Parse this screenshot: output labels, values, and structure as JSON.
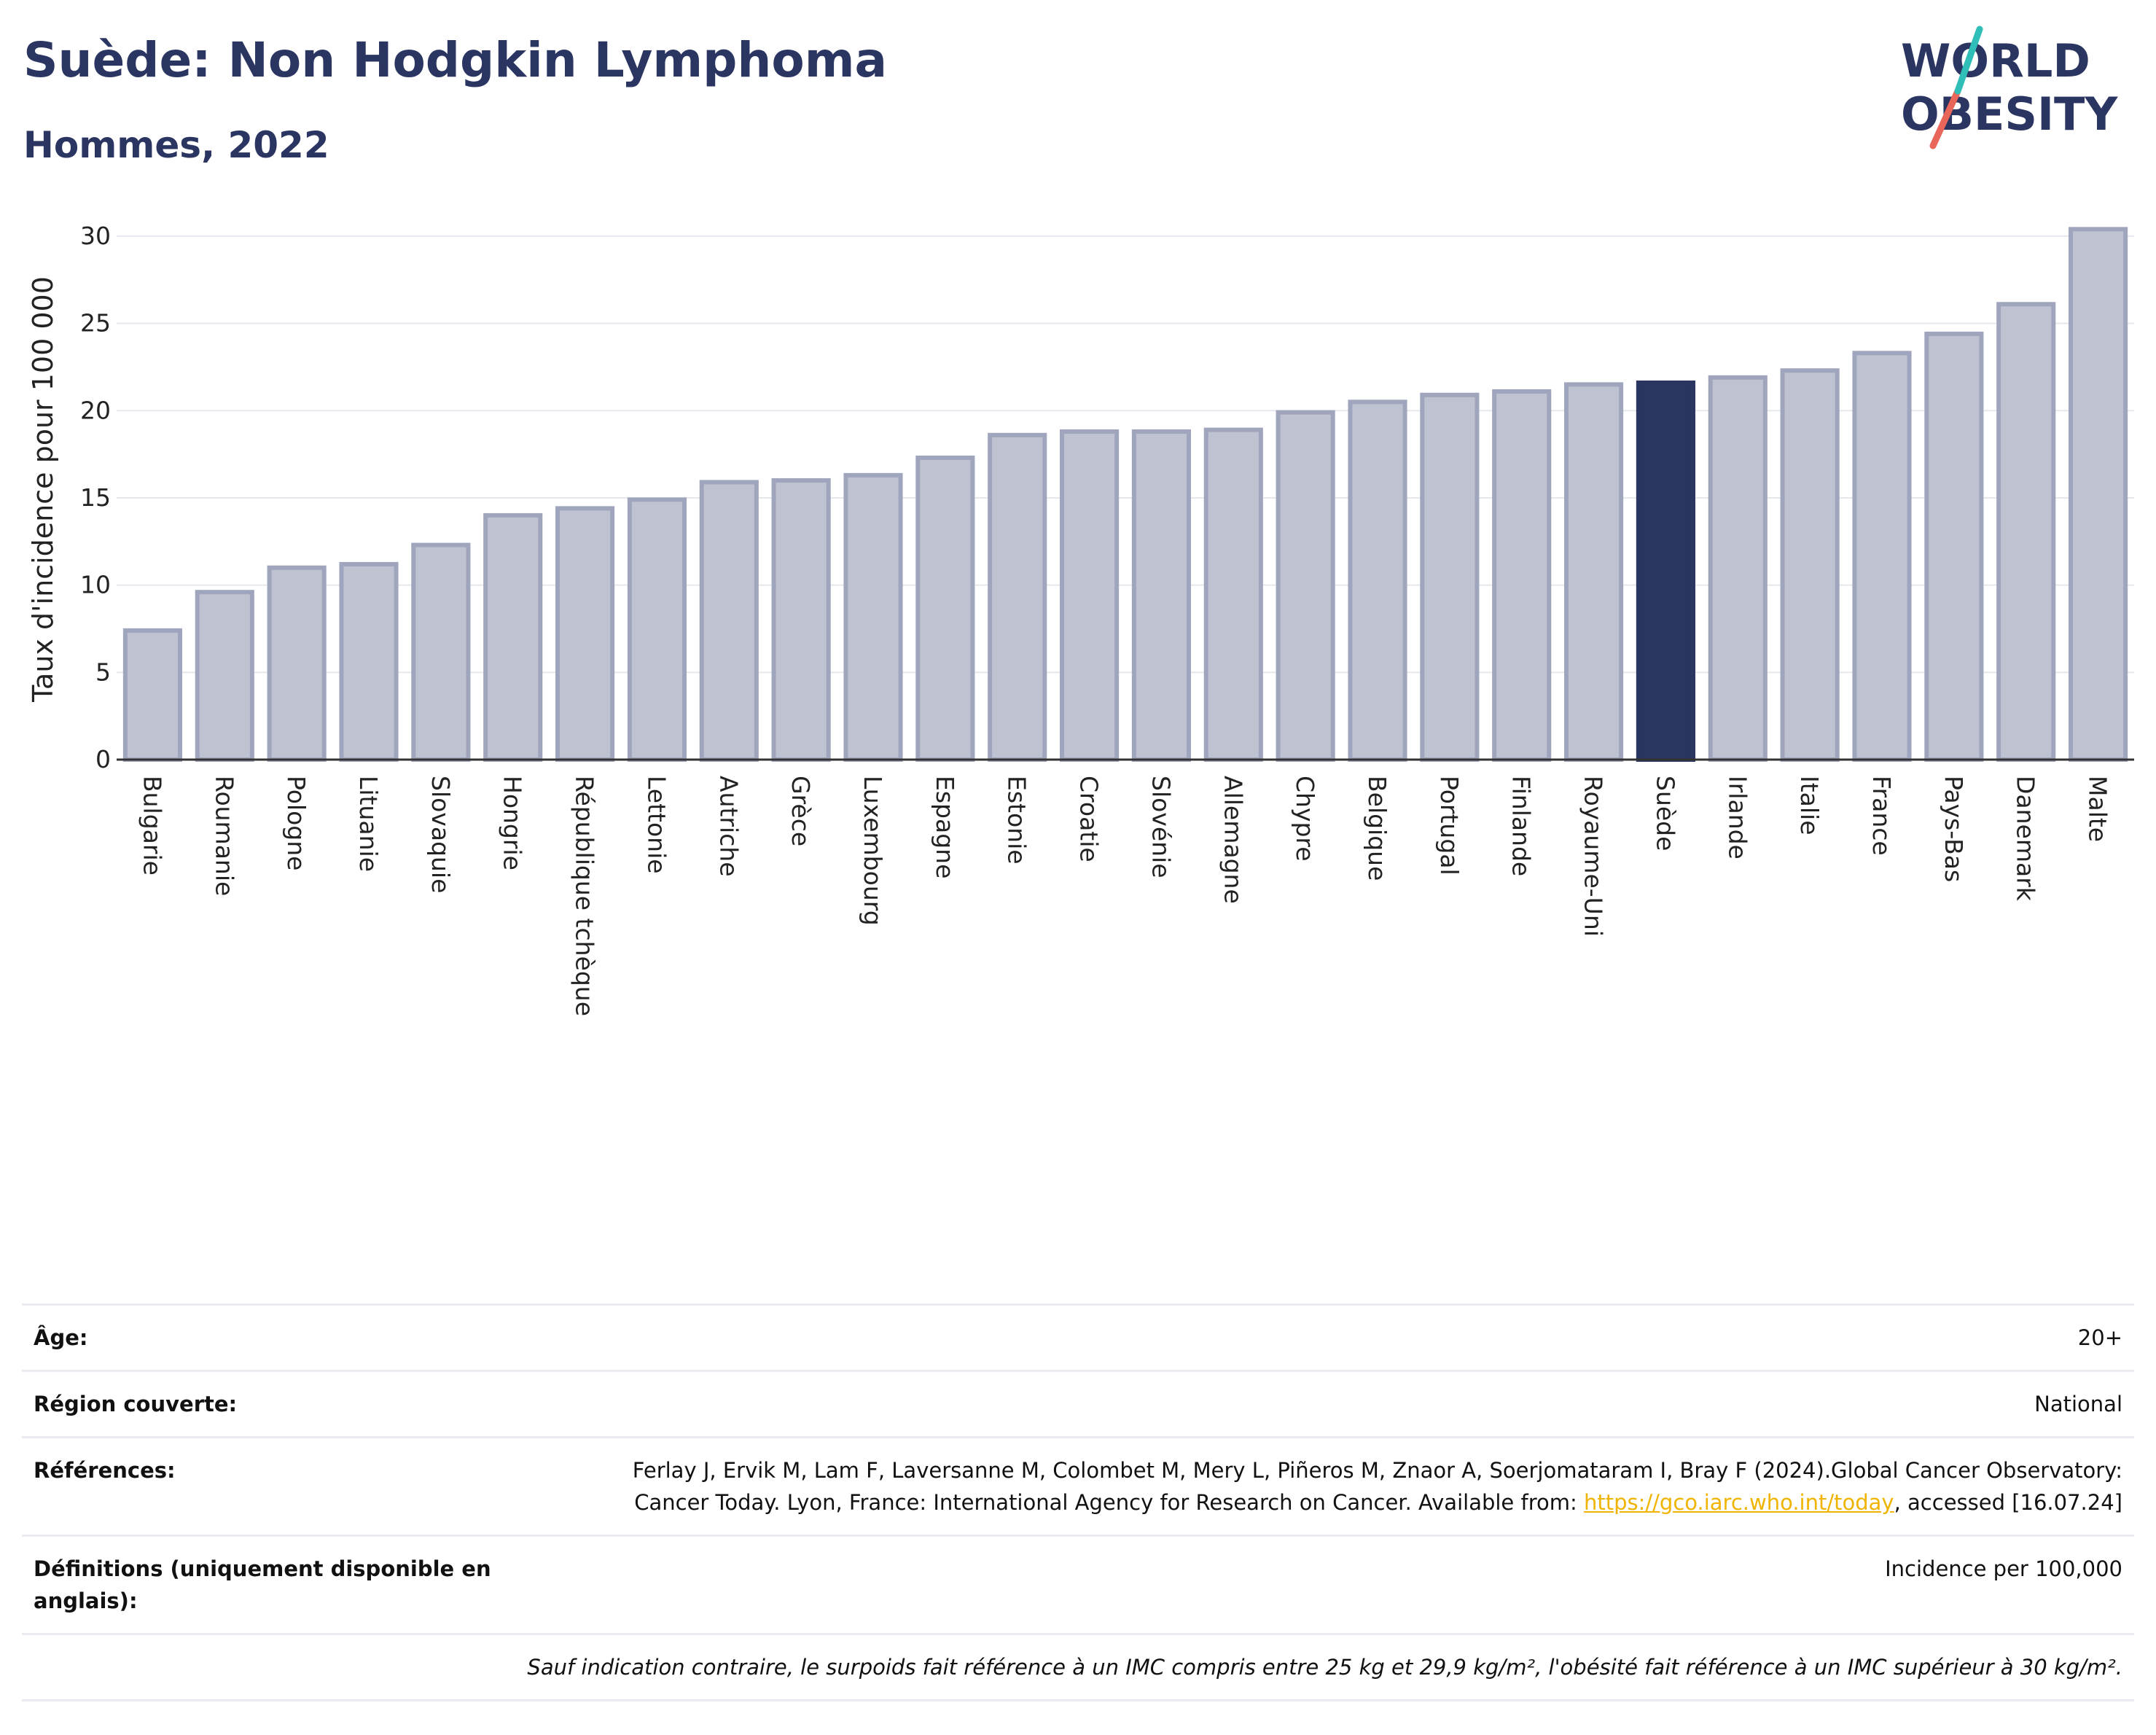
{
  "title": "Suède: Non Hodgkin Lymphoma",
  "subtitle": "Hommes, 2022",
  "logo": {
    "line1": "WORLD",
    "line2": "OBESITY"
  },
  "colors": {
    "highlight": "#2b3561",
    "bar": "#bfc3d1",
    "bar_border": "#9fa5bd",
    "accent_teal": "#2fbfb8",
    "accent_red": "#e8675a"
  },
  "chart_data": {
    "type": "bar",
    "ylabel": "Taux d'incidence pour 100 000",
    "xlabel": "",
    "ylim": [
      0,
      31
    ],
    "yticks": [
      0,
      5,
      10,
      15,
      20,
      25,
      30
    ],
    "highlight": "Suède",
    "categories": [
      "Bulgarie",
      "Roumanie",
      "Pologne",
      "Lituanie",
      "Slovaquie",
      "Hongrie",
      "République tchèque",
      "Lettonie",
      "Autriche",
      "Grèce",
      "Luxembourg",
      "Espagne",
      "Estonie",
      "Croatie",
      "Slovénie",
      "Allemagne",
      "Chypre",
      "Belgique",
      "Portugal",
      "Finlande",
      "Royaume-Uni",
      "Suède",
      "Irlande",
      "Italie",
      "France",
      "Pays-Bas",
      "Danemark",
      "Malte"
    ],
    "values": [
      7.4,
      9.6,
      11.0,
      11.2,
      12.3,
      14.0,
      14.4,
      14.9,
      15.9,
      16.0,
      16.3,
      17.3,
      18.6,
      18.8,
      18.8,
      18.9,
      19.9,
      20.5,
      20.9,
      21.1,
      21.5,
      21.6,
      21.9,
      22.3,
      23.3,
      24.4,
      26.1,
      30.4
    ],
    "grid": true
  },
  "info": {
    "age_label": "Âge:",
    "age_value": "20+",
    "region_label": "Région couverte:",
    "region_value": "National",
    "refs_label": "Références:",
    "refs_text_1": "Ferlay J, Ervik M, Lam F, Laversanne M, Colombet M, Mery L, Piñeros M, Znaor A, Soerjomataram I, Bray F (2024).Global Cancer Observatory: Cancer Today. Lyon, France: International Agency for Research on Cancer. Available from: ",
    "refs_link": "https://gco.iarc.who.int/today",
    "refs_text_2": ", accessed [16.07.24]",
    "def_label": "Définitions (uniquement disponible en anglais):",
    "def_value": "Incidence per 100,000",
    "note": "Sauf indication contraire, le surpoids fait référence à un IMC compris entre 25 kg et 29,9 kg/m², l'obésité fait référence à un IMC supérieur à 30 kg/m²."
  }
}
